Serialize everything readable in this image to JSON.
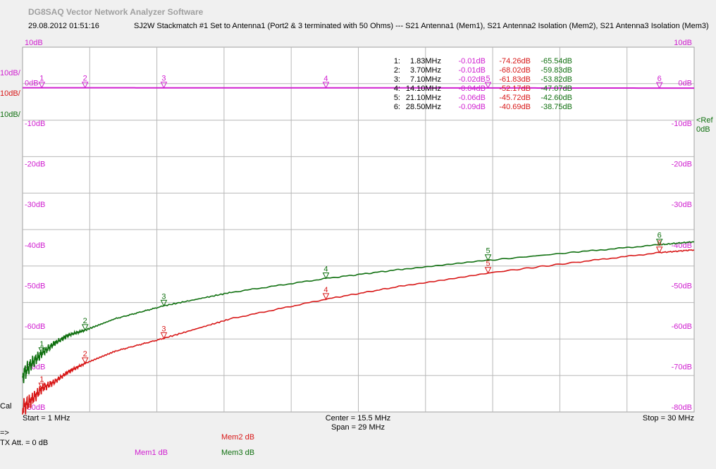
{
  "app": {
    "title": "DG8SAQ Vector Network Analyzer Software",
    "datetime": "29.08.2012   01:51:16",
    "subtitle": "SJ2W Stackmatch #1 Set to Antenna1 (Port2 & 3 terminated with 50 Ohms) --- S21 Antenna1 (Mem1), S21 Antenna2 Isolation (Mem2), S21 Antenna3 Isolation (Mem3)"
  },
  "colors": {
    "mem1": "#d020d0",
    "mem2": "#d81818",
    "mem3": "#107010",
    "grid": "#b8b8b8",
    "plot_bg": "#ffffff"
  },
  "scale_labels": {
    "left_mem1": "10dB/",
    "left_mem2": "10dB/",
    "left_mem3": "10dB/",
    "ref_marker": "<Ref",
    "ref_value": "0dB"
  },
  "footer": {
    "start": "Start = 1 MHz",
    "center": "Center = 15.5 MHz",
    "span": "Span = 29 MHz",
    "stop": "Stop = 30 MHz",
    "cal": "Cal",
    "arrow": "=>",
    "tx_att": "TX Att.   = 0 dB",
    "mem1_label": "Mem1 dB",
    "mem2_label": "Mem2 dB",
    "mem3_label": "Mem3 dB"
  },
  "marker_table": [
    {
      "idx": "1:",
      "freq": "1.83MHz",
      "mem1": "-0.01dB",
      "mem2": "-74.26dB",
      "mem3": "-65.54dB"
    },
    {
      "idx": "2:",
      "freq": "3.70MHz",
      "mem1": "-0.01dB",
      "mem2": "-68.02dB",
      "mem3": "-59.83dB"
    },
    {
      "idx": "3:",
      "freq": "7.10MHz",
      "mem1": "-0.02dB",
      "mem2": "-61.83dB",
      "mem3": "-53.82dB"
    },
    {
      "idx": "4:",
      "freq": "14.10MHz",
      "mem1": "-0.04dB",
      "mem2": "-52.17dB",
      "mem3": "-47.07dB"
    },
    {
      "idx": "5:",
      "freq": "21.10MHz",
      "mem1": "-0.06dB",
      "mem2": "-45.72dB",
      "mem3": "-42.60dB"
    },
    {
      "idx": "6:",
      "freq": "28.50MHz",
      "mem1": "-0.09dB",
      "mem2": "-40.69dB",
      "mem3": "-38.75dB"
    }
  ],
  "chart_data": {
    "type": "line",
    "xlim": [
      1,
      30
    ],
    "ylim": [
      -80,
      10
    ],
    "x_unit": "MHz",
    "y_unit": "dB",
    "y_ticks": [
      "10dB",
      "0dB",
      "-10dB",
      "-20dB",
      "-30dB",
      "-40dB",
      "-50dB",
      "-60dB",
      "-70dB",
      "-80dB"
    ],
    "grid": true,
    "markers": [
      {
        "label": "1",
        "freq": 1.83
      },
      {
        "label": "2",
        "freq": 3.7
      },
      {
        "label": "3",
        "freq": 7.1
      },
      {
        "label": "4",
        "freq": 14.1
      },
      {
        "label": "5",
        "freq": 21.1
      },
      {
        "label": "6",
        "freq": 28.5
      }
    ],
    "series": [
      {
        "name": "Mem1",
        "color": "#d020d0",
        "x": [
          1,
          1.83,
          3.7,
          7.1,
          14.1,
          21.1,
          28.5,
          30
        ],
        "y": [
          -0.01,
          -0.01,
          -0.01,
          -0.02,
          -0.04,
          -0.06,
          -0.09,
          -0.09
        ]
      },
      {
        "name": "Mem2",
        "color": "#d81818",
        "x": [
          1,
          1.4,
          1.83,
          2.4,
          3.0,
          3.7,
          5.0,
          7.1,
          10.0,
          14.1,
          17.5,
          21.1,
          25.0,
          28.5,
          30
        ],
        "y": [
          -79,
          -77,
          -74.26,
          -72.5,
          -70,
          -68.02,
          -65,
          -61.83,
          -57,
          -52.17,
          -48.8,
          -45.72,
          -43,
          -40.69,
          -40
        ]
      },
      {
        "name": "Mem3",
        "color": "#107010",
        "x": [
          1,
          1.4,
          1.83,
          2.4,
          3.0,
          3.7,
          5.0,
          7.1,
          10.0,
          14.1,
          17.5,
          21.1,
          25.0,
          28.5,
          30
        ],
        "y": [
          -71,
          -68,
          -65.54,
          -63,
          -61,
          -59.83,
          -57,
          -53.82,
          -50.5,
          -47.07,
          -44.7,
          -42.6,
          -40.5,
          -38.75,
          -38
        ]
      }
    ]
  }
}
